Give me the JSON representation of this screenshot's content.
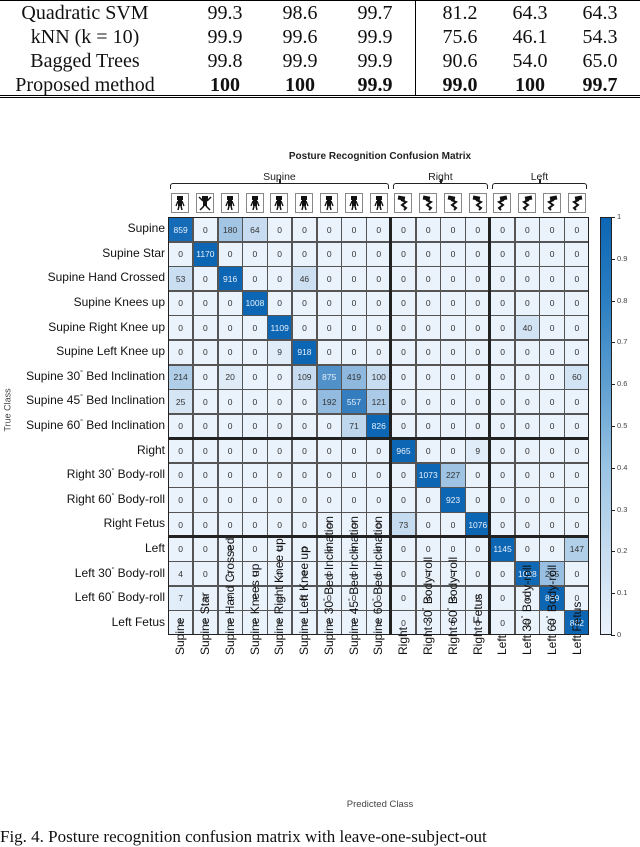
{
  "top_table": {
    "rows": [
      {
        "method": "Quadratic SVM",
        "values": [
          "99.3",
          "98.6",
          "99.7",
          "81.2",
          "64.3",
          "64.3"
        ],
        "bold": false
      },
      {
        "method": "kNN (k = 10)",
        "values": [
          "99.9",
          "99.6",
          "99.9",
          "75.6",
          "46.1",
          "54.3"
        ],
        "bold": false
      },
      {
        "method": "Bagged Trees",
        "values": [
          "99.8",
          "99.9",
          "99.9",
          "90.6",
          "54.0",
          "65.0"
        ],
        "bold": false
      },
      {
        "method": "Proposed method",
        "values": [
          "100",
          "100",
          "99.9",
          "99.0",
          "100",
          "99.7"
        ],
        "bold": true
      }
    ]
  },
  "figure": {
    "title": "Posture Recognition Confusion Matrix",
    "groups": [
      {
        "label": "Supine",
        "start": 0,
        "count": 9
      },
      {
        "label": "Right",
        "start": 9,
        "count": 4
      },
      {
        "label": "Left",
        "start": 13,
        "count": 4
      }
    ],
    "icons": [
      "supine-icon",
      "supine-star-icon",
      "supine-hand-crossed-icon",
      "supine-knees-up-icon",
      "supine-right-knee-up-icon",
      "supine-left-knee-up-icon",
      "supine-30-bed-icon",
      "supine-45-bed-icon",
      "supine-60-bed-icon",
      "right-icon",
      "right-30-roll-icon",
      "right-60-roll-icon",
      "right-fetus-icon",
      "left-icon",
      "left-30-roll-icon",
      "left-60-roll-icon",
      "left-fetus-icon"
    ],
    "xlabel": "Predicted Class",
    "ylabel": "True Class",
    "colorbar": {
      "ticks": [
        "0",
        "0.1",
        "0.2",
        "0.3",
        "0.4",
        "0.5",
        "0.6",
        "0.7",
        "0.8",
        "0.9",
        "1"
      ],
      "color_low": "#eaf2fb",
      "color_high": "#0d66b4"
    },
    "caption": "Fig. 4.    Posture recognition confusion matrix with leave-one-subject-out"
  },
  "chart_data": {
    "type": "heatmap",
    "title": "Posture Recognition Confusion Matrix",
    "xlabel": "Predicted Class",
    "ylabel": "True Class",
    "classes": [
      {
        "name": "Supine",
        "deg": ""
      },
      {
        "name": "Supine Star",
        "deg": ""
      },
      {
        "name": "Supine Hand Crossed",
        "deg": ""
      },
      {
        "name": "Supine Knees up",
        "deg": ""
      },
      {
        "name": "Supine Right Knee up",
        "deg": ""
      },
      {
        "name": "Supine Left Knee up",
        "deg": ""
      },
      {
        "name": "Supine 30",
        "deg": "°",
        "suffix": " Bed Inclination"
      },
      {
        "name": "Supine 45",
        "deg": "°",
        "suffix": " Bed Inclination"
      },
      {
        "name": "Supine 60",
        "deg": "°",
        "suffix": " Bed Inclination"
      },
      {
        "name": "Right",
        "deg": ""
      },
      {
        "name": "Right 30",
        "deg": "°",
        "suffix": " Body-roll"
      },
      {
        "name": "Right 60",
        "deg": "°",
        "suffix": " Body-roll"
      },
      {
        "name": "Right Fetus",
        "deg": ""
      },
      {
        "name": "Left",
        "deg": ""
      },
      {
        "name": "Left 30",
        "deg": "°",
        "suffix": " Body-roll"
      },
      {
        "name": "Left 60",
        "deg": "°",
        "suffix": " Body-roll"
      },
      {
        "name": "Left Fetus",
        "deg": ""
      }
    ],
    "matrix": [
      [
        859,
        0,
        180,
        64,
        0,
        0,
        0,
        0,
        0,
        0,
        0,
        0,
        0,
        0,
        0,
        0,
        0
      ],
      [
        0,
        1170,
        0,
        0,
        0,
        0,
        0,
        0,
        0,
        0,
        0,
        0,
        0,
        0,
        0,
        0,
        0
      ],
      [
        53,
        0,
        916,
        0,
        0,
        46,
        0,
        0,
        0,
        0,
        0,
        0,
        0,
        0,
        0,
        0,
        0
      ],
      [
        0,
        0,
        0,
        1008,
        0,
        0,
        0,
        0,
        0,
        0,
        0,
        0,
        0,
        0,
        0,
        0,
        0
      ],
      [
        0,
        0,
        0,
        0,
        1109,
        0,
        0,
        0,
        0,
        0,
        0,
        0,
        0,
        0,
        40,
        0,
        0
      ],
      [
        0,
        0,
        0,
        0,
        9,
        918,
        0,
        0,
        0,
        0,
        0,
        0,
        0,
        0,
        0,
        0,
        0
      ],
      [
        214,
        0,
        20,
        0,
        0,
        109,
        875,
        419,
        100,
        0,
        0,
        0,
        0,
        0,
        0,
        0,
        60
      ],
      [
        25,
        0,
        0,
        0,
        0,
        0,
        192,
        557,
        121,
        0,
        0,
        0,
        0,
        0,
        0,
        0,
        0
      ],
      [
        0,
        0,
        0,
        0,
        0,
        0,
        0,
        71,
        826,
        0,
        0,
        0,
        0,
        0,
        0,
        0,
        0
      ],
      [
        0,
        0,
        0,
        0,
        0,
        0,
        0,
        0,
        0,
        965,
        0,
        0,
        9,
        0,
        0,
        0,
        0
      ],
      [
        0,
        0,
        0,
        0,
        0,
        0,
        0,
        0,
        0,
        0,
        1073,
        227,
        0,
        0,
        0,
        0,
        0
      ],
      [
        0,
        0,
        0,
        0,
        0,
        0,
        0,
        0,
        0,
        0,
        0,
        923,
        0,
        0,
        0,
        0,
        0
      ],
      [
        0,
        0,
        0,
        0,
        0,
        0,
        0,
        0,
        0,
        73,
        0,
        0,
        1076,
        0,
        0,
        0,
        0
      ],
      [
        0,
        0,
        0,
        0,
        0,
        0,
        0,
        0,
        0,
        0,
        0,
        0,
        0,
        1145,
        0,
        0,
        147
      ],
      [
        4,
        0,
        0,
        0,
        0,
        0,
        0,
        0,
        0,
        0,
        0,
        0,
        0,
        0,
        1028,
        255,
        0
      ],
      [
        7,
        0,
        0,
        0,
        0,
        0,
        0,
        0,
        0,
        0,
        0,
        0,
        0,
        0,
        0,
        869,
        0
      ],
      [
        0,
        0,
        0,
        0,
        0,
        0,
        0,
        0,
        0,
        0,
        0,
        0,
        0,
        0,
        0,
        0,
        862
      ]
    ],
    "group_boundaries": [
      9,
      13
    ],
    "colorbar_range": [
      0,
      1
    ],
    "colorbar_ticks": [
      0,
      0.1,
      0.2,
      0.3,
      0.4,
      0.5,
      0.6,
      0.7,
      0.8,
      0.9,
      1
    ],
    "colormap": "blues",
    "legend_position": "right"
  }
}
